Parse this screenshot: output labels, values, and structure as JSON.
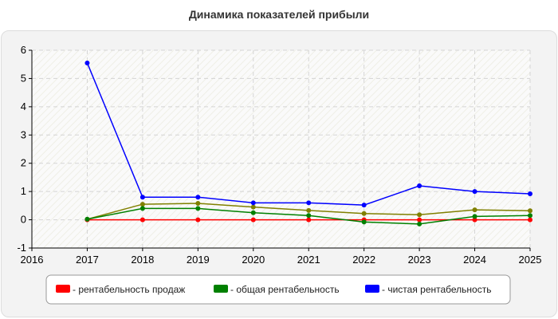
{
  "chart_data": {
    "type": "line",
    "title": "Динамика показателей прибыли",
    "x": [
      2017,
      2018,
      2019,
      2020,
      2021,
      2022,
      2023,
      2024,
      2025
    ],
    "xlim": [
      2016,
      2025
    ],
    "ylim": [
      -1,
      6
    ],
    "xticks": [
      "2016",
      "2017",
      "2018",
      "2019",
      "2020",
      "2021",
      "2022",
      "2023",
      "2024",
      "2025"
    ],
    "yticks": [
      "-1",
      "0",
      "1",
      "2",
      "3",
      "4",
      "5",
      "6"
    ],
    "grid": true,
    "legend_position": "bottom",
    "series": [
      {
        "name": "- рентабельность продаж",
        "color": "#ff0000",
        "values": [
          0.0,
          0.0,
          0.0,
          0.0,
          0.0,
          0.0,
          0.0,
          0.0,
          0.0
        ]
      },
      {
        "name": "- общая рентабельность",
        "color": "#008000",
        "values": [
          0.02,
          0.4,
          0.4,
          0.25,
          0.15,
          -0.08,
          -0.15,
          0.12,
          0.15
        ]
      },
      {
        "name": "- чистая рентабельность",
        "color": "#0000ff",
        "values": [
          5.55,
          0.8,
          0.8,
          0.6,
          0.6,
          0.52,
          1.2,
          1.0,
          0.92
        ]
      }
    ],
    "unlabeled_series": [
      {
        "color": "#808000",
        "values": [
          0.02,
          0.55,
          0.58,
          0.45,
          0.33,
          0.22,
          0.18,
          0.35,
          0.32
        ]
      }
    ]
  }
}
